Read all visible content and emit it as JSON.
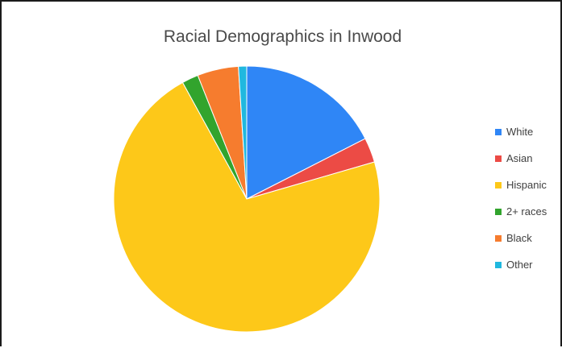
{
  "chart_data": {
    "type": "pie",
    "title": "Racial Demographics in Inwood",
    "categories": [
      "White",
      "Asian",
      "Hispanic",
      "2+ races",
      "Black",
      "Other"
    ],
    "values": [
      17.5,
      3,
      71.5,
      2,
      5,
      1
    ],
    "colors": [
      "#2f86f6",
      "#ec4b45",
      "#fdc819",
      "#32a42d",
      "#f67c2e",
      "#20b8df"
    ],
    "start_angle_deg": 0,
    "direction": "clockwise",
    "legend_position": "right"
  }
}
